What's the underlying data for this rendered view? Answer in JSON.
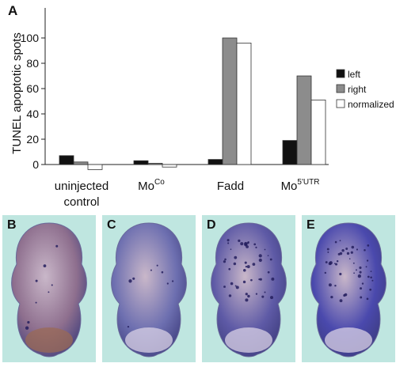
{
  "figure": {
    "panel_letter": "A",
    "photo_panels": [
      {
        "letter": "B",
        "tint": "#8e6f8e",
        "dots": "few"
      },
      {
        "letter": "C",
        "tint": "#6d6fb0",
        "dots": "few"
      },
      {
        "letter": "D",
        "tint": "#5e5aa6",
        "dots": "many"
      },
      {
        "letter": "E",
        "tint": "#4a49ad",
        "dots": "many"
      }
    ]
  },
  "chart_data": {
    "type": "bar",
    "ylabel": "TUNEL apoptotic spots",
    "xlabel": "",
    "ylim": [
      -4,
      100
    ],
    "yticks": [
      0,
      20,
      40,
      60,
      80,
      100
    ],
    "categories": [
      {
        "lines": [
          "uninjected",
          "control"
        ]
      },
      {
        "lines": [
          "Mo"
        ],
        "sup": "Co"
      },
      {
        "lines": [
          "Fadd"
        ]
      },
      {
        "lines": [
          "Mo"
        ],
        "sup": "5'UTR"
      }
    ],
    "series": [
      {
        "name": "left",
        "color": "#111111",
        "values": [
          7,
          3,
          4,
          19
        ]
      },
      {
        "name": "right",
        "color": "#8c8c8c",
        "values": [
          2,
          1,
          100,
          70
        ]
      },
      {
        "name": "normalized",
        "color": "#ffffff",
        "values": [
          -4,
          -2,
          96,
          51
        ]
      }
    ],
    "legend": "right"
  }
}
